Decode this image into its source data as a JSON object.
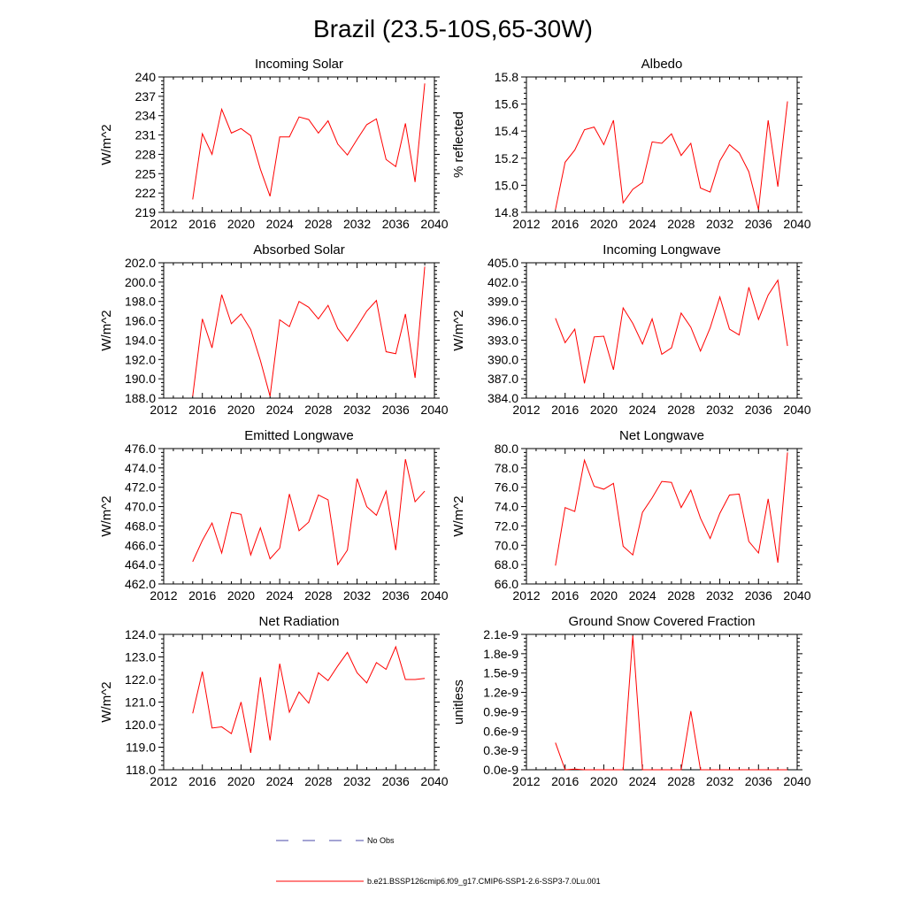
{
  "page_title": "Brazil (23.5-10S,65-30W)",
  "colors": {
    "model": "#ff0000",
    "obs": "#4a4aaa",
    "axis": "#000000"
  },
  "legend": [
    {
      "label": "No Obs",
      "style": "dashed",
      "color": "#4a4aaa"
    },
    {
      "label": "b.e21.BSSP126cmip6.f09_g17.CMIP6-SSP1-2.6-SSP3-7.0Lu.001",
      "style": "solid",
      "color": "#ff0000"
    }
  ],
  "chart_data": [
    {
      "type": "line",
      "title": "Incoming Solar",
      "ylabel": "W/m^2",
      "xlabel": "",
      "xlim": [
        2012,
        2040
      ],
      "ylim": [
        219,
        240
      ],
      "xticks": [
        2012,
        2016,
        2020,
        2024,
        2028,
        2032,
        2036,
        2040
      ],
      "yticks": [
        219,
        222,
        225,
        228,
        231,
        234,
        237,
        240
      ],
      "ytick_labels": [
        "219",
        "222",
        "225",
        "228",
        "231",
        "234",
        "237",
        "240"
      ],
      "x": [
        2015,
        2016,
        2017,
        2018,
        2019,
        2020,
        2021,
        2022,
        2023,
        2024,
        2025,
        2026,
        2027,
        2028,
        2029,
        2030,
        2031,
        2032,
        2033,
        2034,
        2035,
        2036,
        2037,
        2038,
        2039
      ],
      "series": [
        {
          "values": [
            221.0,
            231.2,
            228.0,
            235.0,
            231.3,
            232.0,
            230.9,
            225.7,
            221.5,
            230.7,
            230.7,
            233.8,
            233.4,
            231.3,
            233.2,
            229.6,
            227.9,
            230.3,
            232.6,
            233.5,
            227.2,
            226.1,
            232.8,
            223.7,
            239.0
          ]
        }
      ]
    },
    {
      "type": "line",
      "title": "Albedo",
      "ylabel": "% reflected",
      "xlabel": "",
      "xlim": [
        2012,
        2040
      ],
      "ylim": [
        14.8,
        15.8
      ],
      "xticks": [
        2012,
        2016,
        2020,
        2024,
        2028,
        2032,
        2036,
        2040
      ],
      "yticks": [
        14.8,
        15.0,
        15.2,
        15.4,
        15.6,
        15.8
      ],
      "ytick_labels": [
        "14.8",
        "15.0",
        "15.2",
        "15.4",
        "15.6",
        "15.8"
      ],
      "x": [
        2015,
        2016,
        2017,
        2018,
        2019,
        2020,
        2021,
        2022,
        2023,
        2024,
        2025,
        2026,
        2027,
        2028,
        2029,
        2030,
        2031,
        2032,
        2033,
        2034,
        2035,
        2036,
        2037,
        2038,
        2039
      ],
      "series": [
        {
          "values": [
            14.82,
            15.17,
            15.26,
            15.41,
            15.43,
            15.3,
            15.48,
            14.87,
            14.97,
            15.02,
            15.32,
            15.31,
            15.38,
            15.22,
            15.31,
            14.98,
            14.95,
            15.18,
            15.3,
            15.24,
            15.1,
            14.82,
            15.48,
            14.99,
            15.62
          ]
        }
      ]
    },
    {
      "type": "line",
      "title": "Absorbed Solar",
      "ylabel": "W/m^2",
      "xlabel": "",
      "xlim": [
        2012,
        2040
      ],
      "ylim": [
        188,
        202
      ],
      "xticks": [
        2012,
        2016,
        2020,
        2024,
        2028,
        2032,
        2036,
        2040
      ],
      "yticks": [
        188,
        190,
        192,
        194,
        196,
        198,
        200,
        202
      ],
      "ytick_labels": [
        "188.0",
        "190.0",
        "192.0",
        "194.0",
        "196.0",
        "198.0",
        "200.0",
        "202.0"
      ],
      "x": [
        2015,
        2016,
        2017,
        2018,
        2019,
        2020,
        2021,
        2022,
        2023,
        2024,
        2025,
        2026,
        2027,
        2028,
        2029,
        2030,
        2031,
        2032,
        2033,
        2034,
        2035,
        2036,
        2037,
        2038,
        2039
      ],
      "series": [
        {
          "values": [
            188.2,
            196.2,
            193.2,
            198.7,
            195.7,
            196.7,
            195.1,
            191.9,
            188.2,
            196.1,
            195.4,
            198.0,
            197.4,
            196.2,
            197.6,
            195.2,
            193.9,
            195.4,
            197.0,
            198.1,
            192.8,
            192.6,
            196.7,
            190.1,
            201.6
          ]
        }
      ]
    },
    {
      "type": "line",
      "title": "Incoming Longwave",
      "ylabel": "W/m^2",
      "xlabel": "",
      "xlim": [
        2012,
        2040
      ],
      "ylim": [
        384,
        405
      ],
      "xticks": [
        2012,
        2016,
        2020,
        2024,
        2028,
        2032,
        2036,
        2040
      ],
      "yticks": [
        384,
        387,
        390,
        393,
        396,
        399,
        402,
        405
      ],
      "ytick_labels": [
        "384.0",
        "387.0",
        "390.0",
        "393.0",
        "396.0",
        "399.0",
        "402.0",
        "405.0"
      ],
      "x": [
        2015,
        2016,
        2017,
        2018,
        2019,
        2020,
        2021,
        2022,
        2023,
        2024,
        2025,
        2026,
        2027,
        2028,
        2029,
        2030,
        2031,
        2032,
        2033,
        2034,
        2035,
        2036,
        2037,
        2038,
        2039
      ],
      "series": [
        {
          "values": [
            396.4,
            392.6,
            394.7,
            386.3,
            393.5,
            393.6,
            388.4,
            398.0,
            395.6,
            392.4,
            396.3,
            390.8,
            391.8,
            397.2,
            395.0,
            391.3,
            394.9,
            399.7,
            394.7,
            393.8,
            401.2,
            396.2,
            400.0,
            402.3,
            392.1
          ]
        }
      ]
    },
    {
      "type": "line",
      "title": "Emitted Longwave",
      "ylabel": "W/m^2",
      "xlabel": "",
      "xlim": [
        2012,
        2040
      ],
      "ylim": [
        462,
        476
      ],
      "xticks": [
        2012,
        2016,
        2020,
        2024,
        2028,
        2032,
        2036,
        2040
      ],
      "yticks": [
        462,
        464,
        466,
        468,
        470,
        472,
        474,
        476
      ],
      "ytick_labels": [
        "462.0",
        "464.0",
        "466.0",
        "468.0",
        "470.0",
        "472.0",
        "474.0",
        "476.0"
      ],
      "x": [
        2015,
        2016,
        2017,
        2018,
        2019,
        2020,
        2021,
        2022,
        2023,
        2024,
        2025,
        2026,
        2027,
        2028,
        2029,
        2030,
        2031,
        2032,
        2033,
        2034,
        2035,
        2036,
        2037,
        2038,
        2039
      ],
      "series": [
        {
          "values": [
            464.3,
            466.5,
            468.3,
            465.2,
            469.4,
            469.2,
            465.0,
            467.8,
            464.6,
            465.7,
            471.3,
            467.5,
            468.4,
            471.2,
            470.7,
            464.0,
            465.5,
            472.9,
            470.0,
            469.1,
            471.6,
            465.5,
            474.9,
            470.5,
            471.6
          ]
        }
      ]
    },
    {
      "type": "line",
      "title": "Net Longwave",
      "ylabel": "W/m^2",
      "xlabel": "",
      "xlim": [
        2012,
        2040
      ],
      "ylim": [
        66,
        80
      ],
      "xticks": [
        2012,
        2016,
        2020,
        2024,
        2028,
        2032,
        2036,
        2040
      ],
      "yticks": [
        66,
        68,
        70,
        72,
        74,
        76,
        78,
        80
      ],
      "ytick_labels": [
        "66.0",
        "68.0",
        "70.0",
        "72.0",
        "74.0",
        "76.0",
        "78.0",
        "80.0"
      ],
      "x": [
        2015,
        2016,
        2017,
        2018,
        2019,
        2020,
        2021,
        2022,
        2023,
        2024,
        2025,
        2026,
        2027,
        2028,
        2029,
        2030,
        2031,
        2032,
        2033,
        2034,
        2035,
        2036,
        2037,
        2038,
        2039
      ],
      "series": [
        {
          "values": [
            67.9,
            73.9,
            73.5,
            78.8,
            76.1,
            75.8,
            76.4,
            69.9,
            69.0,
            73.4,
            74.9,
            76.6,
            76.5,
            73.9,
            75.7,
            72.8,
            70.7,
            73.3,
            75.2,
            75.3,
            70.4,
            69.2,
            74.8,
            68.2,
            79.6
          ]
        }
      ]
    },
    {
      "type": "line",
      "title": "Net Radiation",
      "ylabel": "W/m^2",
      "xlabel": "",
      "xlim": [
        2012,
        2040
      ],
      "ylim": [
        118,
        124
      ],
      "xticks": [
        2012,
        2016,
        2020,
        2024,
        2028,
        2032,
        2036,
        2040
      ],
      "yticks": [
        118,
        119,
        120,
        121,
        122,
        123,
        124
      ],
      "ytick_labels": [
        "118.0",
        "119.0",
        "120.0",
        "121.0",
        "122.0",
        "123.0",
        "124.0"
      ],
      "x": [
        2015,
        2016,
        2017,
        2018,
        2019,
        2020,
        2021,
        2022,
        2023,
        2024,
        2025,
        2026,
        2027,
        2028,
        2029,
        2030,
        2031,
        2032,
        2033,
        2034,
        2035,
        2036,
        2037,
        2038,
        2039
      ],
      "series": [
        {
          "values": [
            120.5,
            122.35,
            119.85,
            119.9,
            119.6,
            121.0,
            118.75,
            122.1,
            119.3,
            122.7,
            120.55,
            121.45,
            120.95,
            122.3,
            121.95,
            122.6,
            123.2,
            122.3,
            121.85,
            122.75,
            122.45,
            123.45,
            122.0,
            122.0,
            122.05
          ]
        }
      ]
    },
    {
      "type": "line",
      "title": "Ground Snow Covered Fraction",
      "ylabel": "unitless",
      "xlabel": "",
      "xlim": [
        2012,
        2040
      ],
      "ylim": [
        0,
        2.1e-09
      ],
      "xticks": [
        2012,
        2016,
        2020,
        2024,
        2028,
        2032,
        2036,
        2040
      ],
      "yticks": [
        0,
        3e-10,
        6e-10,
        9e-10,
        1.2e-09,
        1.5e-09,
        1.8e-09,
        2.1e-09
      ],
      "ytick_labels": [
        "0.0e-9",
        "0.3e-9",
        "0.6e-9",
        "0.9e-9",
        "1.2e-9",
        "1.5e-9",
        "1.8e-9",
        "2.1e-9"
      ],
      "x": [
        2015,
        2016,
        2017,
        2018,
        2019,
        2020,
        2021,
        2022,
        2023,
        2024,
        2025,
        2026,
        2027,
        2028,
        2029,
        2030,
        2031,
        2032,
        2033,
        2034,
        2035,
        2036,
        2037,
        2038,
        2039
      ],
      "series": [
        {
          "values": [
            4.2e-10,
            0,
            1e-11,
            0,
            0,
            0,
            0,
            0,
            2.08e-09,
            0,
            0,
            0,
            0,
            0,
            9.1e-10,
            0,
            0,
            0,
            0,
            0,
            0,
            0,
            0,
            0,
            0
          ]
        }
      ]
    }
  ]
}
